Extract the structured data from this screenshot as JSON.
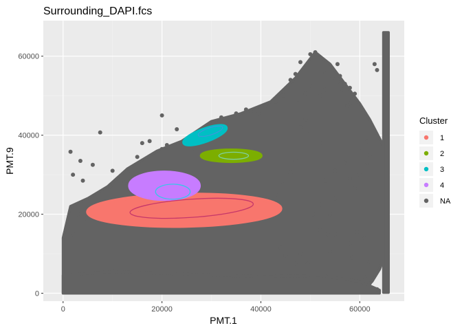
{
  "chart_data": {
    "type": "scatter",
    "title": "Surrounding_DAPI.fcs",
    "xlabel": "PMT.1",
    "ylabel": "PMT.9",
    "xlim": [
      -4000,
      69000
    ],
    "ylim": [
      -2000,
      69000
    ],
    "x_ticks": [
      0,
      20000,
      40000,
      60000
    ],
    "y_ticks": [
      0,
      20000,
      40000,
      60000
    ],
    "grid": true,
    "legend": {
      "title": "Cluster",
      "position": "right",
      "items": [
        {
          "label": "1",
          "color": "#F8766D"
        },
        {
          "label": "2",
          "color": "#7CAE00"
        },
        {
          "label": "3",
          "color": "#00BFC4"
        },
        {
          "label": "4",
          "color": "#C77CFF"
        },
        {
          "label": "NA",
          "color": "#636363"
        }
      ]
    },
    "regions": [
      {
        "label": "NA",
        "color": "#636363",
        "polygon": [
          [
            0,
            0
          ],
          [
            0,
            14000
          ],
          [
            1500,
            22000
          ],
          [
            5000,
            24000
          ],
          [
            9000,
            27000
          ],
          [
            13000,
            31500
          ],
          [
            19000,
            36000
          ],
          [
            24000,
            38500
          ],
          [
            30000,
            43500
          ],
          [
            36000,
            45500
          ],
          [
            42000,
            48500
          ],
          [
            47000,
            54500
          ],
          [
            51000,
            61000
          ],
          [
            54000,
            58000
          ],
          [
            57000,
            53000
          ],
          [
            60000,
            48000
          ],
          [
            62000,
            44000
          ],
          [
            64500,
            38000
          ],
          [
            65500,
            34000
          ],
          [
            65800,
            25000
          ],
          [
            65800,
            12000
          ],
          [
            64000,
            6000
          ],
          [
            62500,
            3000
          ],
          [
            61000,
            1000
          ],
          [
            60000,
            0
          ]
        ]
      },
      {
        "label": "NA",
        "color": "#636363",
        "polygon": [
          [
            0,
            0
          ],
          [
            0,
            4500
          ],
          [
            10000,
            5500
          ],
          [
            25000,
            4800
          ],
          [
            40000,
            4200
          ],
          [
            52000,
            4500
          ],
          [
            60000,
            3000
          ],
          [
            64000,
            800
          ],
          [
            64000,
            0
          ]
        ]
      },
      {
        "label": "NA",
        "color": "#636363",
        "polygon": [
          [
            64800,
            200
          ],
          [
            65800,
            200
          ],
          [
            65800,
            66000
          ],
          [
            64800,
            66000
          ]
        ]
      }
    ],
    "points": [
      {
        "label": "NA",
        "color": "#636363",
        "xy": [
          [
            7500,
            40700
          ],
          [
            1500,
            35800
          ],
          [
            2000,
            30000
          ],
          [
            4000,
            28500
          ],
          [
            3500,
            33500
          ],
          [
            6000,
            32500
          ],
          [
            9500,
            27000
          ],
          [
            11000,
            29000
          ],
          [
            12500,
            28000
          ],
          [
            15000,
            34500
          ],
          [
            17500,
            38500
          ],
          [
            20000,
            36500
          ],
          [
            21000,
            37500
          ],
          [
            24000,
            37500
          ],
          [
            26000,
            36000
          ],
          [
            37000,
            46500
          ],
          [
            38000,
            46000
          ],
          [
            39500,
            45500
          ],
          [
            41000,
            47500
          ],
          [
            43000,
            48500
          ],
          [
            46000,
            54000
          ],
          [
            47000,
            55500
          ],
          [
            48000,
            58500
          ],
          [
            49000,
            57000
          ],
          [
            50000,
            60500
          ],
          [
            51000,
            61000
          ],
          [
            53000,
            55500
          ],
          [
            55500,
            58000
          ],
          [
            56000,
            55000
          ],
          [
            57000,
            53000
          ],
          [
            58000,
            52000
          ],
          [
            59000,
            50500
          ],
          [
            60500,
            45500
          ],
          [
            63000,
            58000
          ],
          [
            63500,
            56500
          ],
          [
            60500,
            36000
          ],
          [
            61500,
            38500
          ],
          [
            62000,
            35000
          ],
          [
            61500,
            33000
          ],
          [
            60000,
            30000
          ],
          [
            58000,
            29000
          ],
          [
            57000,
            33000
          ],
          [
            55000,
            31000
          ],
          [
            53000,
            28500
          ],
          [
            59000,
            26500
          ],
          [
            55000,
            24000
          ],
          [
            52000,
            22500
          ],
          [
            50500,
            20000
          ],
          [
            54000,
            20000
          ],
          [
            58000,
            18500
          ],
          [
            61000,
            14000
          ],
          [
            58000,
            12500
          ],
          [
            59500,
            15500
          ],
          [
            52000,
            16000
          ],
          [
            55000,
            15000
          ],
          [
            53500,
            15000
          ],
          [
            58500,
            9000
          ],
          [
            62000,
            8000
          ],
          [
            63000,
            5000
          ],
          [
            48000,
            10000
          ],
          [
            47000,
            7500
          ],
          [
            49500,
            7500
          ],
          [
            45000,
            9500
          ],
          [
            44000,
            11500
          ],
          [
            56000,
            10500
          ],
          [
            54000,
            10500
          ],
          [
            61000,
            4000
          ],
          [
            62000,
            2500
          ],
          [
            63500,
            1000
          ],
          [
            3000,
            20000
          ],
          [
            4500,
            19000
          ],
          [
            1000,
            17000
          ],
          [
            2000,
            15000
          ],
          [
            20000,
            45000
          ],
          [
            23000,
            41500
          ],
          [
            16000,
            38000
          ],
          [
            13000,
            30500
          ],
          [
            10000,
            31000
          ],
          [
            47500,
            49000
          ],
          [
            44500,
            50000
          ],
          [
            35000,
            45500
          ],
          [
            32000,
            44500
          ],
          [
            58500,
            49000
          ],
          [
            58000,
            48000
          ],
          [
            57500,
            47500
          ],
          [
            56500,
            51500
          ],
          [
            55500,
            53500
          ],
          [
            54500,
            54500
          ],
          [
            53000,
            51500
          ],
          [
            52000,
            50000
          ],
          [
            50000,
            52500
          ],
          [
            49000,
            50500
          ],
          [
            49000,
            44000
          ],
          [
            48000,
            42000
          ],
          [
            50000,
            40500
          ],
          [
            52000,
            38000
          ],
          [
            47000,
            33500
          ],
          [
            46000,
            30500
          ],
          [
            44500,
            27500
          ],
          [
            43000,
            25000
          ]
        ]
      }
    ],
    "series": [
      {
        "name": "1",
        "color": "#F8766D",
        "ellipse": {
          "cx": 24500,
          "cy": 21000,
          "rx": 19500,
          "ry": 4000,
          "angle": 1
        }
      },
      {
        "name": "2",
        "color": "#7CAE00",
        "ellipse": {
          "cx": 34000,
          "cy": 34800,
          "rx": 6000,
          "ry": 1400,
          "angle": 0
        }
      },
      {
        "name": "3",
        "color": "#00BFC4",
        "ellipse": {
          "cx": 28700,
          "cy": 40000,
          "rx": 4500,
          "ry": 1500,
          "angle": 20
        }
      },
      {
        "name": "4",
        "color": "#C77CFF",
        "ellipse": {
          "cx": 20500,
          "cy": 27200,
          "rx": 7000,
          "ry": 3400,
          "angle": 0
        }
      }
    ],
    "fitted_ellipses": [
      {
        "cluster": "1",
        "color": "#C6376A",
        "cx": 26000,
        "cy": 21500,
        "rx": 12500,
        "ry": 2300,
        "angle": 4
      },
      {
        "cluster": "2",
        "color": "#7FD0A0",
        "cx": 34500,
        "cy": 34800,
        "rx": 3000,
        "ry": 900,
        "angle": 0
      },
      {
        "cluster": "3",
        "color": "#3B9AD9",
        "cx": 29800,
        "cy": 41000,
        "rx": 2600,
        "ry": 900,
        "angle": 18
      },
      {
        "cluster": "4",
        "color": "#38C6E8",
        "cx": 22200,
        "cy": 25700,
        "rx": 3500,
        "ry": 1900,
        "angle": 0
      }
    ]
  }
}
